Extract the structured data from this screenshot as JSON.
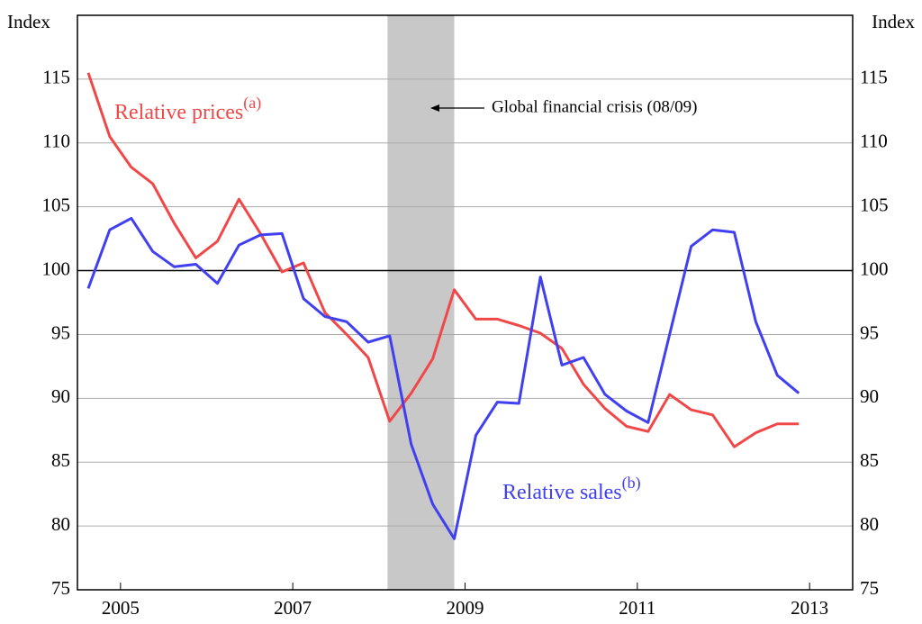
{
  "chart_data": {
    "type": "line",
    "y_label_left": "Index",
    "y_label_right": "Index",
    "x": [
      2004.625,
      2004.875,
      2005.125,
      2005.375,
      2005.625,
      2005.875,
      2006.125,
      2006.375,
      2006.625,
      2006.875,
      2007.125,
      2007.375,
      2007.625,
      2007.875,
      2008.125,
      2008.375,
      2008.625,
      2008.875,
      2009.125,
      2009.375,
      2009.625,
      2009.875,
      2010.125,
      2010.375,
      2010.625,
      2010.875,
      2011.125,
      2011.375,
      2011.625,
      2011.875,
      2012.125,
      2012.375,
      2012.625,
      2012.875
    ],
    "series": [
      {
        "name": "Relative prices",
        "note": "(a)",
        "color": "#f04848",
        "values": [
          115.5,
          110.5,
          108.1,
          106.8,
          103.7,
          101.0,
          102.3,
          105.6,
          102.9,
          99.9,
          100.6,
          96.7,
          95.0,
          93.2,
          88.2,
          90.4,
          93.1,
          98.5,
          96.2,
          96.2,
          95.7,
          95.1,
          93.9,
          91.1,
          89.2,
          87.8,
          87.4,
          90.3,
          89.1,
          88.7,
          86.2,
          87.3,
          88.0,
          88.0
        ]
      },
      {
        "name": "Relative sales",
        "note": "(b)",
        "color": "#4040f0",
        "values": [
          98.6,
          103.2,
          104.1,
          101.5,
          100.3,
          100.5,
          99.0,
          102.0,
          102.8,
          102.9,
          97.8,
          96.4,
          96.0,
          94.4,
          94.9,
          86.4,
          81.7,
          79.0,
          87.1,
          89.7,
          89.6,
          99.5,
          92.6,
          93.2,
          90.3,
          89.0,
          88.1,
          95.0,
          101.9,
          103.2,
          103.0,
          96.0,
          91.8,
          90.4
        ]
      }
    ],
    "shaded_region": {
      "xlim": [
        2008.1,
        2008.875
      ],
      "label": "Global financial crisis (08/09)",
      "color": "#c8c8c8"
    },
    "reference_line": 100,
    "xlim": [
      2004.5,
      2013.5
    ],
    "xticks": [
      2005,
      2007,
      2009,
      2011,
      2013
    ],
    "ylim": [
      75,
      120
    ],
    "yticks": [
      75,
      80,
      85,
      90,
      95,
      100,
      105,
      110,
      115
    ],
    "grid": true
  }
}
